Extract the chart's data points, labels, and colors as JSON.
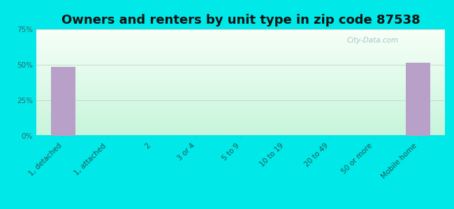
{
  "title": "Owners and renters by unit type in zip code 87538",
  "categories": [
    "1, detached",
    "1, attached",
    "2",
    "3 or 4",
    "5 to 9",
    "10 to 19",
    "20 to 49",
    "50 or more",
    "Mobile home"
  ],
  "values": [
    48.5,
    0,
    0,
    0,
    0,
    0,
    0,
    0,
    51.5
  ],
  "bar_color": "#b8a0c8",
  "background_color": "#00e8e8",
  "plot_bg_top": "#f5fdf5",
  "plot_bg_bottom": "#c8f0d8",
  "ylim": [
    0,
    75
  ],
  "yticks": [
    0,
    25,
    50,
    75
  ],
  "ytick_labels": [
    "0%",
    "25%",
    "50%",
    "75%"
  ],
  "title_fontsize": 13,
  "tick_fontsize": 7.5,
  "watermark": "City-Data.com",
  "grid_color": "#ccddcc",
  "tick_color": "#22cccc"
}
